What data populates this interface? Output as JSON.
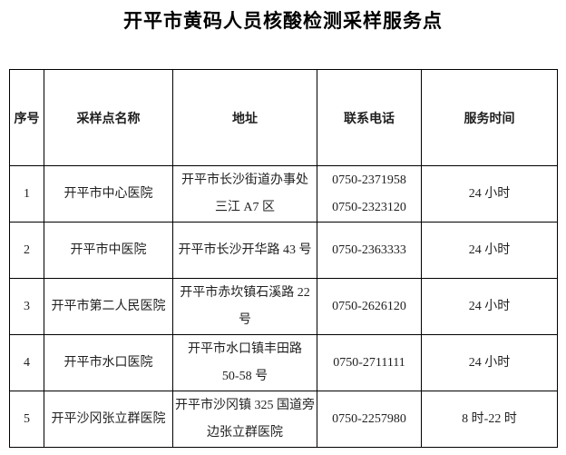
{
  "title": "开平市黄码人员核酸检测采样服务点",
  "colors": {
    "text": "#1f1f1f",
    "border": "#000000",
    "background": "#ffffff"
  },
  "table": {
    "headers": [
      "序号",
      "采样点名称",
      "地址",
      "联系电话",
      "服务时间"
    ],
    "rows": [
      {
        "no": "1",
        "name": "开平市中心医院",
        "address_lines": [
          "开平市长沙街道办事处",
          "三江 A7 区"
        ],
        "phone_lines": [
          "0750-2371958",
          "0750-2323120"
        ],
        "hours": "24 小时"
      },
      {
        "no": "2",
        "name": "开平市中医院",
        "address_lines": [
          "开平市长沙开华路 43 号"
        ],
        "phone_lines": [
          "0750-2363333"
        ],
        "hours": "24 小时"
      },
      {
        "no": "3",
        "name": "开平市第二人民医院",
        "address_lines": [
          "开平市赤坎镇石溪路 22",
          "号"
        ],
        "phone_lines": [
          "0750-2626120"
        ],
        "hours": "24 小时"
      },
      {
        "no": "4",
        "name": "开平市水口医院",
        "address_lines": [
          "开平市水口镇丰田路",
          "50-58 号"
        ],
        "phone_lines": [
          "0750-2711111"
        ],
        "hours": "24 小时"
      },
      {
        "no": "5",
        "name": "开平沙冈张立群医院",
        "address_lines": [
          "开平市沙冈镇 325 国道旁",
          "边张立群医院"
        ],
        "phone_lines": [
          "0750-2257980"
        ],
        "hours": "8 时-22 时"
      }
    ]
  }
}
